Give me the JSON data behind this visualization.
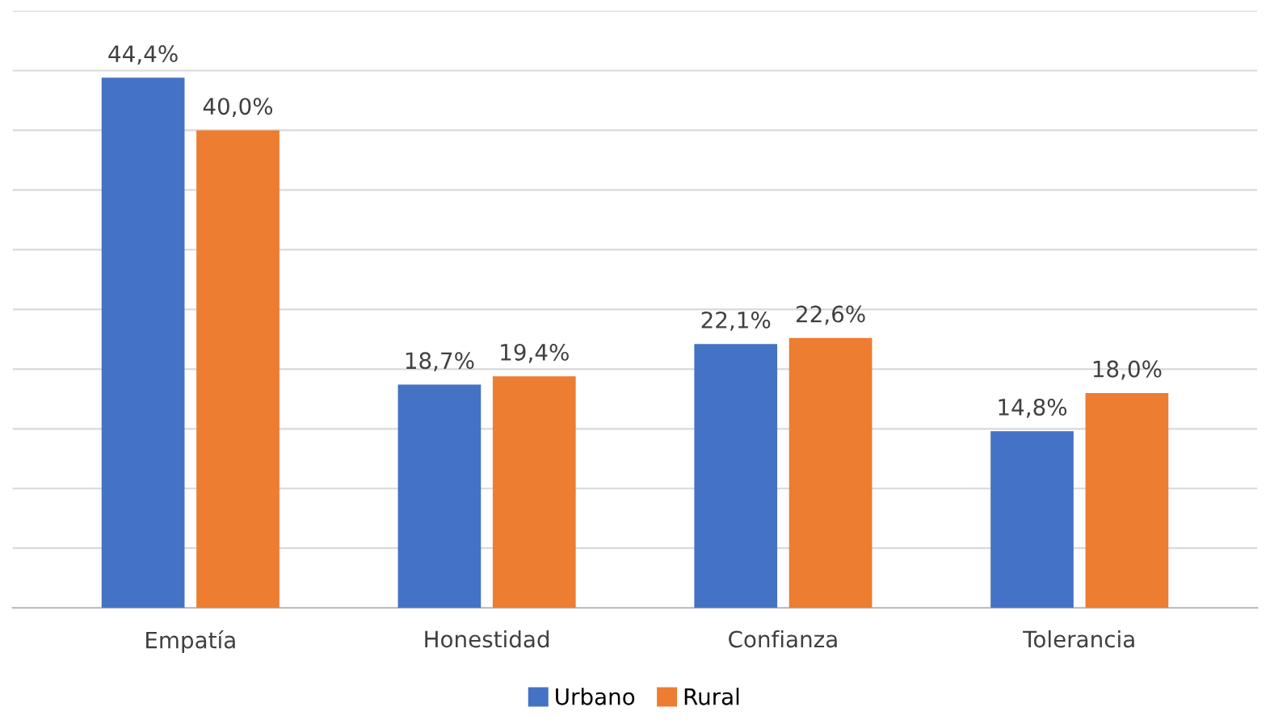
{
  "chart_data": {
    "type": "bar",
    "categories": [
      "Empatía",
      "Honestidad",
      "Confianza",
      "Tolerancia"
    ],
    "series": [
      {
        "name": "Urbano",
        "color": "#4472c4",
        "values": [
          44.4,
          18.7,
          22.1,
          14.8
        ],
        "value_labels": [
          "44,4%",
          "18,7%",
          "22,1%",
          "14,8%"
        ]
      },
      {
        "name": "Rural",
        "color": "#ed7d31",
        "values": [
          40.0,
          19.4,
          22.6,
          18.0
        ],
        "value_labels": [
          "40,0%",
          "19,4%",
          "22,6%",
          "18,0%"
        ]
      }
    ],
    "ylim": [
      0,
      50
    ],
    "yticks": [
      {
        "value": 0,
        "label": null
      },
      {
        "value": 5,
        "label": null
      },
      {
        "value": 10,
        "label": null
      },
      {
        "value": 15,
        "label": null
      },
      {
        "value": 20,
        "label": null
      },
      {
        "value": 25,
        "label": null
      },
      {
        "value": 30,
        "label": null
      },
      {
        "value": 35,
        "label": null
      },
      {
        "value": 40,
        "label": null
      },
      {
        "value": 45,
        "label": null
      },
      {
        "value": 50,
        "label": null
      }
    ],
    "grid": "y",
    "legend": "bottom"
  }
}
